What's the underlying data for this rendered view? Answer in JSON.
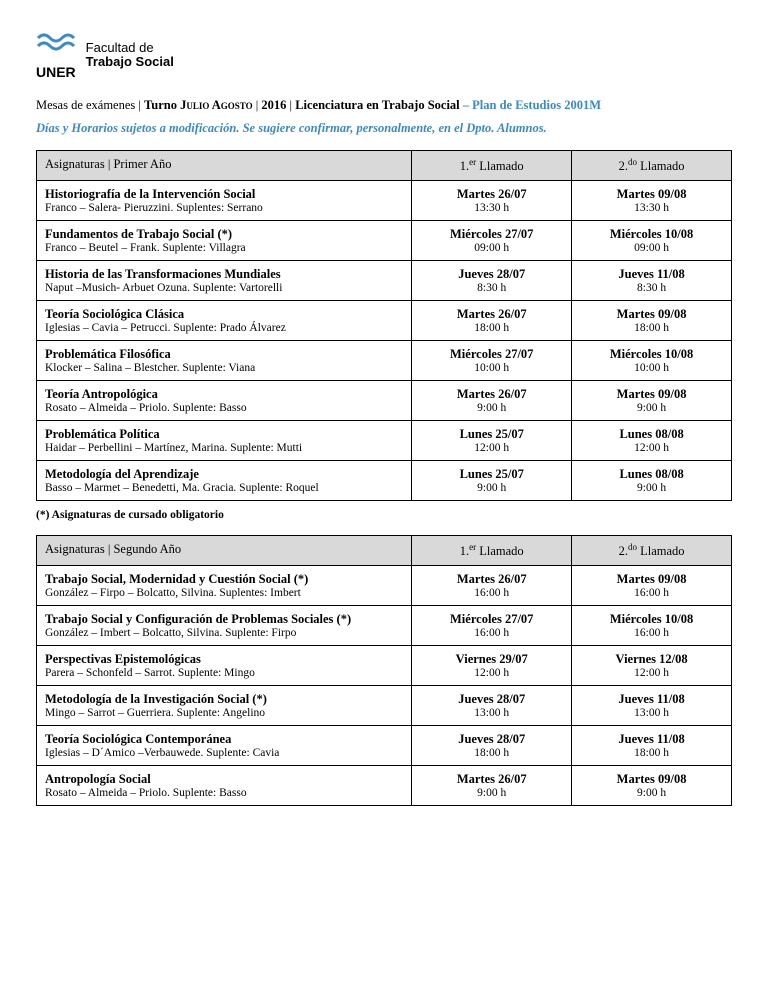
{
  "logo": {
    "uner": "UNER",
    "line1": "Facultad de",
    "line2": "Trabajo Social",
    "wave_color": "#3a8ac8"
  },
  "header": {
    "prefix": "Mesas de exámenes",
    "turno_label": "Turno ",
    "turno_value": "Julio Agosto",
    "year": "2016",
    "career": "Licenciatura en Trabajo Social",
    "plan": "– Plan de Estudios 2001M"
  },
  "notice": "Días y Horarios sujetos a modificación. Se sugiere confirmar, personalmente, en el Dpto. Alumnos.",
  "col_headers": {
    "call1_num": "1.",
    "call1_sup": "er",
    "call1_rest": " Llamado",
    "call2_num": "2.",
    "call2_sup": "do",
    "call2_rest": " Llamado",
    "subjects_prefix": "Asignaturas | "
  },
  "footnote": "(*) Asignaturas de cursado obligatorio",
  "tables": [
    {
      "year_label": "Primer Año",
      "rows": [
        {
          "name": "Historiografía de la Intervención  Social",
          "profs": " Franco – Salera- Pieruzzini. Suplentes: Serrano",
          "c1d": "Martes 26/07",
          "c1t": "13:30 h",
          "c2d": "Martes 09/08",
          "c2t": "13:30 h"
        },
        {
          "name": "Fundamentos de Trabajo Social (*)",
          "profs": "Franco – Beutel –  Frank. Suplente:  Villagra",
          "c1d": "Miércoles 27/07",
          "c1t": "09:00 h",
          "c2d": "Miércoles 10/08",
          "c2t": "09:00 h"
        },
        {
          "name": "Historia de las Transformaciones Mundiales",
          "profs": "Naput –Musich-  Arbuet Ozuna. Suplente:  Vartorelli",
          "c1d": "Jueves 28/07",
          "c1t": "8:30 h",
          "c2d": "Jueves 11/08",
          "c2t": "8:30 h"
        },
        {
          "name": "Teoría Sociológica Clásica",
          "profs": "Iglesias – Cavia – Petrucci. Suplente:  Prado Álvarez",
          "c1d": "Martes 26/07",
          "c1t": "18:00 h",
          "c2d": "Martes 09/08",
          "c2t": "18:00 h"
        },
        {
          "name": "Problemática Filosófica",
          "profs": "Klocker   – Salina –  Blestcher. Suplente: Viana",
          "c1d": "Miércoles 27/07",
          "c1t": "10:00 h",
          "c2d": "Miércoles 10/08",
          "c2t": "10:00 h"
        },
        {
          "name": "Teoría Antropológica",
          "profs": "Rosato – Almeida – Priolo. Suplente: Basso",
          "c1d": "Martes 26/07",
          "c1t": "9:00 h",
          "c2d": "Martes 09/08",
          "c2t": "9:00 h"
        },
        {
          "name": "Problemática Política",
          "profs": "Haidar – Perbellini – Martínez, Marina. Suplente: Mutti",
          "c1d": "Lunes 25/07",
          "c1t": "12:00 h",
          "c2d": "Lunes 08/08",
          "c2t": "12:00 h"
        },
        {
          "name": "Metodología del Aprendizaje",
          "profs": "Basso – Marmet –  Benedetti, Ma. Gracia. Suplente: Roquel",
          "c1d": "Lunes 25/07",
          "c1t": "9:00 h",
          "c2d": "Lunes 08/08",
          "c2t": "9:00 h"
        }
      ]
    },
    {
      "year_label": "Segundo Año",
      "rows": [
        {
          "name": "Trabajo Social, Modernidad y Cuestión Social (*)",
          "profs": "González – Firpo – Bolcatto, Silvina. Suplentes: Imbert",
          "c1d": "Martes 26/07",
          "c1t": "16:00 h",
          "c2d": "Martes 09/08",
          "c2t": "16:00 h"
        },
        {
          "name": "Trabajo Social  y Configuración de Problemas Sociales (*)",
          "profs": "González – Imbert – Bolcatto, Silvina. Suplente:  Firpo",
          "c1d": "Miércoles 27/07",
          "c1t": "16:00 h",
          "c2d": "Miércoles 10/08",
          "c2t": "16:00 h"
        },
        {
          "name": "Perspectivas Epistemológicas",
          "profs": "Parera – Schonfeld –  Sarrot. Suplente:  Mingo",
          "c1d": "Viernes 29/07",
          "c1t": "12:00 h",
          "c2d": "Viernes 12/08",
          "c2t": "12:00 h"
        },
        {
          "name": "Metodología de la Investigación Social (*)",
          "profs": "Mingo – Sarrot – Guerriera. Suplente: Angelino",
          "c1d": "Jueves 28/07",
          "c1t": "13:00 h",
          "c2d": "Jueves 11/08",
          "c2t": "13:00 h"
        },
        {
          "name": "Teoría Sociológica Contemporánea",
          "profs": "Iglesias – D´Amico –Verbauwede. Suplente:  Cavia",
          "c1d": "Jueves 28/07",
          "c1t": "18:00 h",
          "c2d": "Jueves 11/08",
          "c2t": "18:00 h"
        },
        {
          "name": "Antropología Social",
          "profs": "Rosato – Almeida – Priolo. Suplente: Basso",
          "c1d": "Martes 26/07",
          "c1t": "9:00 h",
          "c2d": "Martes 09/08",
          "c2t": "9:00 h"
        }
      ]
    }
  ]
}
